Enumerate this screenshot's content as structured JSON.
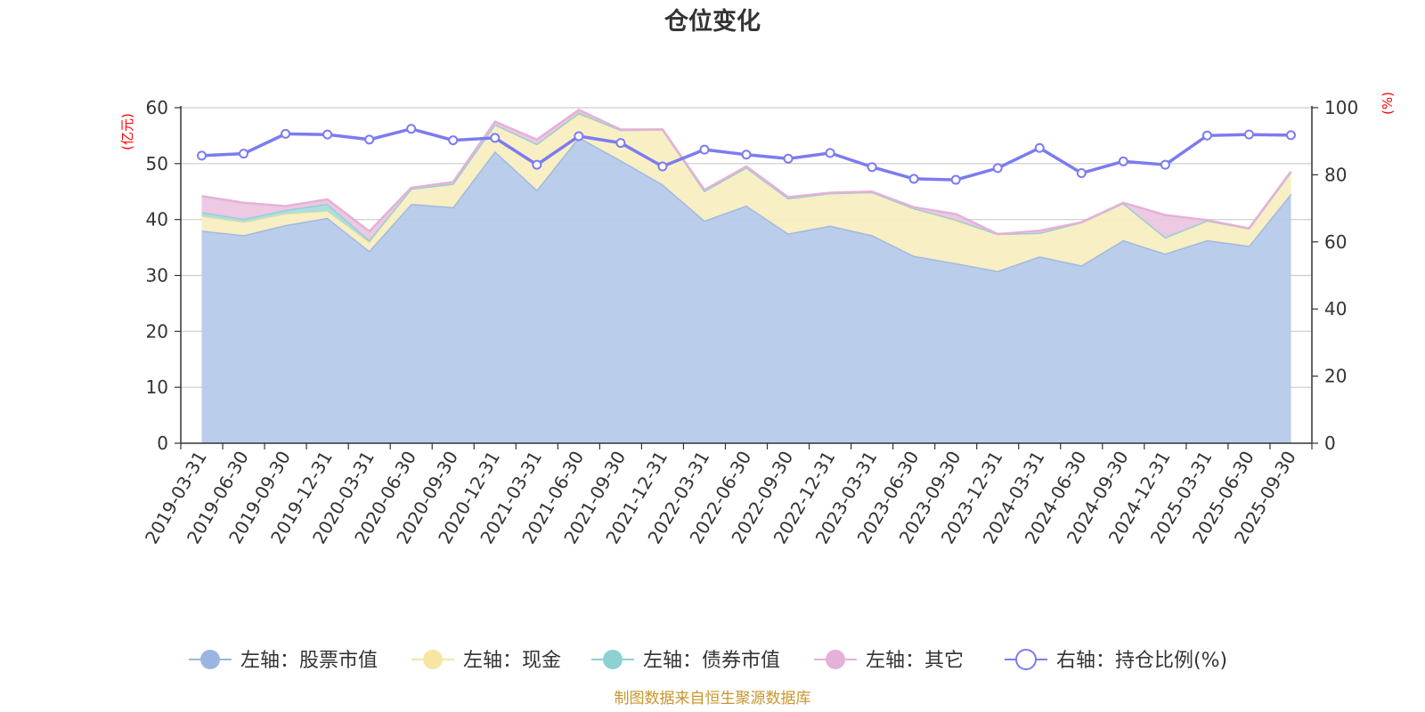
{
  "chart_data": {
    "type": "area",
    "title": "仓位变化",
    "left_axis_unit": "(亿元)",
    "right_axis_unit": "(%)",
    "left_ylim": [
      0,
      60
    ],
    "left_ticks": [
      "0",
      "10",
      "20",
      "30",
      "40",
      "50",
      "60"
    ],
    "right_ylim": [
      0,
      100
    ],
    "right_ticks": [
      "0",
      "20",
      "40",
      "60",
      "80",
      "100"
    ],
    "categories": [
      "2019-03-31",
      "2019-06-30",
      "2019-09-30",
      "2019-12-31",
      "2020-03-31",
      "2020-06-30",
      "2020-09-30",
      "2020-12-31",
      "2021-03-31",
      "2021-06-30",
      "2021-09-30",
      "2021-12-31",
      "2022-03-31",
      "2022-06-30",
      "2022-09-30",
      "2022-12-31",
      "2023-03-31",
      "2023-06-30",
      "2023-09-30",
      "2023-12-31",
      "2024-03-31",
      "2024-06-30",
      "2024-09-30",
      "2024-12-31",
      "2025-03-31",
      "2025-06-30",
      "2025-09-30"
    ],
    "stacked_series": [
      {
        "name": "左轴：股票市值",
        "color": "#9ab6e0",
        "fill": "#b6cae9",
        "values": [
          38.0,
          37.2,
          39.0,
          40.3,
          34.4,
          42.8,
          42.2,
          52.2,
          45.3,
          54.7,
          50.6,
          46.3,
          39.8,
          42.5,
          37.5,
          38.9,
          37.2,
          33.5,
          32.2,
          30.8,
          33.4,
          31.8,
          36.3,
          33.9,
          36.3,
          35.3,
          44.6
        ]
      },
      {
        "name": "左轴：现金",
        "color": "#f7e6a2",
        "fill": "#f9eec2",
        "values": [
          2.6,
          2.3,
          2.0,
          1.2,
          1.5,
          2.7,
          4.2,
          4.8,
          8.2,
          4.1,
          5.4,
          9.8,
          5.3,
          6.8,
          6.3,
          5.8,
          7.7,
          8.5,
          7.6,
          6.6,
          4.2,
          7.7,
          6.6,
          2.9,
          3.5,
          3.1,
          3.9
        ]
      },
      {
        "name": "左轴：债券市值",
        "color": "#8dd1d3",
        "fill": "#a9dcde",
        "values": [
          0.7,
          0.6,
          0.7,
          1.3,
          0.4,
          0.0,
          0.0,
          0.0,
          0.0,
          0.3,
          0.0,
          0.0,
          0.0,
          0.0,
          0.0,
          0.0,
          0.0,
          0.0,
          0.2,
          0.0,
          0.0,
          0.0,
          0.0,
          0.0,
          0.0,
          0.0,
          0.0
        ]
      },
      {
        "name": "左轴：其它",
        "color": "#e5b1d8",
        "fill": "#ecc6e2",
        "values": [
          2.9,
          2.9,
          0.7,
          0.8,
          1.6,
          0.2,
          0.3,
          0.5,
          0.8,
          0.5,
          0.1,
          0.0,
          0.2,
          0.2,
          0.2,
          0.1,
          0.1,
          0.2,
          1.0,
          0.0,
          0.4,
          0.0,
          0.1,
          4.0,
          0.1,
          0.0,
          0.1
        ]
      }
    ],
    "line_series": {
      "name": "右轴：持仓比例(%)",
      "color": "#7b7cf0",
      "values": [
        85.7,
        86.3,
        92.2,
        92.0,
        90.5,
        93.7,
        90.3,
        91.0,
        83.0,
        91.5,
        89.5,
        82.5,
        87.5,
        86.0,
        84.8,
        86.5,
        82.3,
        78.8,
        78.5,
        82.0,
        88.0,
        80.5,
        84.0,
        83.0,
        91.7,
        92.0,
        91.8
      ]
    },
    "legend_position": "bottom",
    "source_note": "制图数据来自恒生聚源数据库"
  }
}
